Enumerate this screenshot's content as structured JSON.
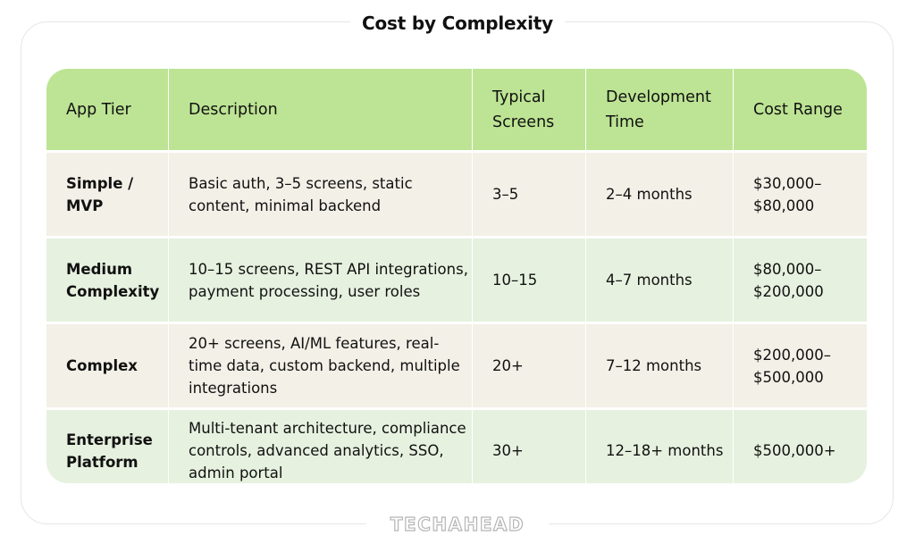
{
  "title": "Cost by Complexity",
  "brand": "TECHAHEAD",
  "colors": {
    "header_bg": "#bde494",
    "row_beige": "#f2f0e7",
    "row_green": "#e6f1df"
  },
  "table": {
    "headers": [
      "App Tier",
      "Description",
      "Typical Screens",
      "Development Time",
      "Cost Range"
    ],
    "rows": [
      {
        "tier": "Simple / MVP",
        "description": "Basic auth, 3–5 screens, static content, minimal backend",
        "screens": "3–5",
        "time": "2–4 months",
        "cost": "$30,000–$80,000"
      },
      {
        "tier": "Medium Complexity",
        "description": "10–15 screens, REST API integrations, payment processing, user roles",
        "screens": "10–15",
        "time": "4–7 months",
        "cost": "$80,000–$200,000"
      },
      {
        "tier": "Complex",
        "description": "20+ screens, AI/ML features, real-time data, custom backend, multiple integrations",
        "screens": "20+",
        "time": "7–12 months",
        "cost": "$200,000–$500,000"
      },
      {
        "tier": "Enterprise Platform",
        "description": "Multi-tenant architecture, compliance controls, advanced analytics, SSO, admin portal",
        "screens": "30+",
        "time": "12–18+ months",
        "cost": "$500,000+"
      }
    ]
  }
}
